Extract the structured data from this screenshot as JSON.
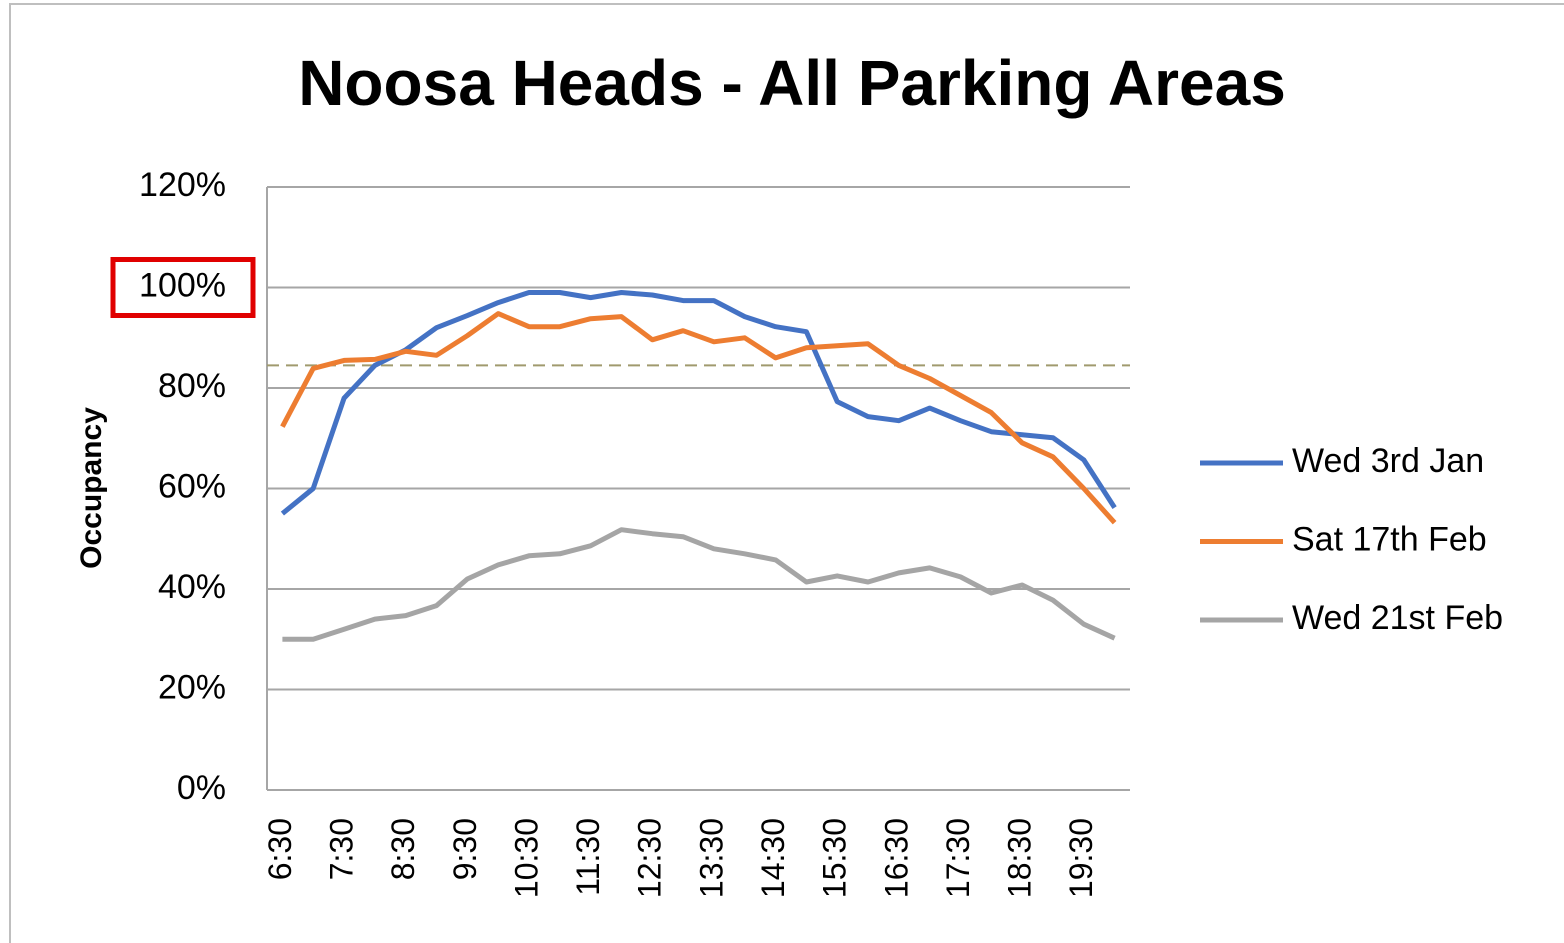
{
  "chart_data": {
    "type": "line",
    "title": "Noosa Heads - All Parking Areas",
    "y_label": "Occupancy",
    "categories": [
      "6:30",
      null,
      "7:30",
      null,
      "8:30",
      null,
      "9:30",
      null,
      "10:30",
      null,
      "11:30",
      null,
      "12:30",
      null,
      "13:30",
      null,
      "14:30",
      null,
      "15:30",
      null,
      "16:30",
      null,
      "17:30",
      null,
      "18:30",
      null,
      "19:30",
      null
    ],
    "series": [
      {
        "name": "Wed 3rd Jan",
        "color": "#4472c4",
        "values": [
          55,
          60,
          78,
          84.5,
          87.6,
          92,
          94.4,
          97,
          99,
          99,
          98,
          99,
          98.5,
          97.4,
          97.4,
          94.2,
          92.2,
          91.2,
          77.3,
          74.3,
          73.5,
          76,
          73.5,
          71.3,
          70.7,
          70.1,
          65.7,
          56.2
        ]
      },
      {
        "name": "Sat 17th Feb",
        "color": "#ed7d31",
        "values": [
          72.3,
          83.9,
          85.5,
          85.7,
          87.3,
          86.5,
          90.4,
          94.8,
          92.2,
          92.2,
          93.8,
          94.2,
          89.6,
          91.4,
          89.2,
          90,
          86,
          88,
          88.4,
          88.8,
          84.5,
          81.9,
          78.5,
          75.1,
          69.1,
          66.3,
          60,
          53.2
        ]
      },
      {
        "name": "Wed 21st Feb",
        "color": "#a5a5a5",
        "values": [
          30,
          30,
          32,
          34,
          34.7,
          36.7,
          42,
          44.8,
          46.6,
          47,
          48.6,
          51.8,
          51,
          50.4,
          48,
          47,
          45.8,
          41.4,
          42.6,
          41.4,
          43.2,
          44.2,
          42.4,
          39.2,
          40.8,
          37.8,
          33,
          30.2
        ]
      }
    ],
    "ylim": [
      0,
      120
    ],
    "yticks": [
      {
        "value": 0,
        "label": "0%"
      },
      {
        "value": 20,
        "label": "20%"
      },
      {
        "value": 40,
        "label": "40%"
      },
      {
        "value": 60,
        "label": "60%"
      },
      {
        "value": 80,
        "label": "80%"
      },
      {
        "value": 100,
        "label": "100%"
      },
      {
        "value": 120,
        "label": "120%"
      }
    ],
    "grid": true,
    "reference_line": {
      "value": 84.5,
      "color": "#a09a6e"
    },
    "highlight_ytick": {
      "value": 100,
      "color": "#e00000"
    },
    "legend": "right"
  }
}
